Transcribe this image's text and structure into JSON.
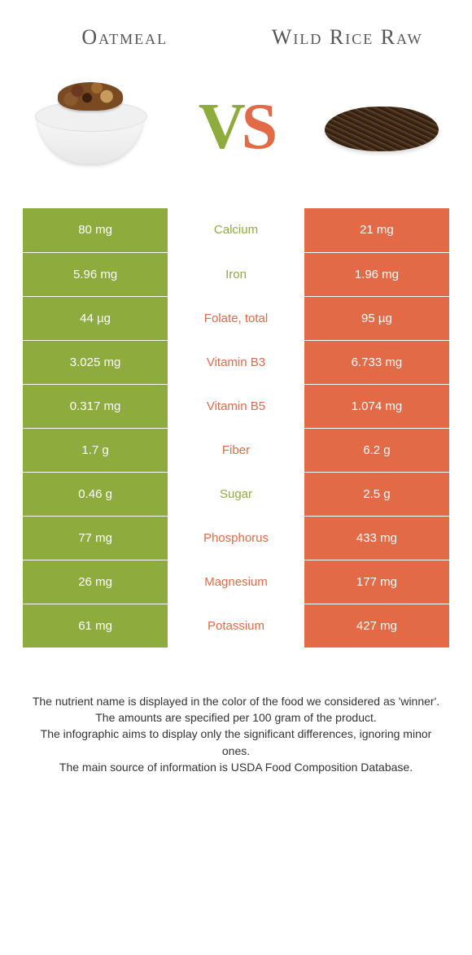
{
  "left_food_name": "Oatmeal",
  "right_food_name": "Wild Rice Raw",
  "vs_label_v": "V",
  "vs_label_s": "S",
  "colors": {
    "left": "#8dac3d",
    "right": "#e26a46",
    "background": "#ffffff",
    "text": "#444444"
  },
  "comparison": {
    "type": "table",
    "columns": [
      "left_value",
      "nutrient",
      "right_value"
    ],
    "winner_colors": {
      "left": "#8dac3d",
      "right": "#e26a46"
    },
    "rows": [
      {
        "left": "80 mg",
        "nutrient": "Calcium",
        "right": "21 mg",
        "winner": "left"
      },
      {
        "left": "5.96 mg",
        "nutrient": "Iron",
        "right": "1.96 mg",
        "winner": "left"
      },
      {
        "left": "44 µg",
        "nutrient": "Folate, total",
        "right": "95 µg",
        "winner": "right"
      },
      {
        "left": "3.025 mg",
        "nutrient": "Vitamin B3",
        "right": "6.733 mg",
        "winner": "right"
      },
      {
        "left": "0.317 mg",
        "nutrient": "Vitamin B5",
        "right": "1.074 mg",
        "winner": "right"
      },
      {
        "left": "1.7 g",
        "nutrient": "Fiber",
        "right": "6.2 g",
        "winner": "right"
      },
      {
        "left": "0.46 g",
        "nutrient": "Sugar",
        "right": "2.5 g",
        "winner": "left"
      },
      {
        "left": "77 mg",
        "nutrient": "Phosphorus",
        "right": "433 mg",
        "winner": "right"
      },
      {
        "left": "26 mg",
        "nutrient": "Magnesium",
        "right": "177 mg",
        "winner": "right"
      },
      {
        "left": "61 mg",
        "nutrient": "Potassium",
        "right": "427 mg",
        "winner": "right"
      }
    ]
  },
  "footer_lines": [
    "The nutrient name is displayed in the color of the food we considered as 'winner'.",
    "The amounts are specified per 100 gram of the product.",
    "The infographic aims to display only the significant differences, ignoring minor ones.",
    "The main source of information is USDA Food Composition Database."
  ]
}
